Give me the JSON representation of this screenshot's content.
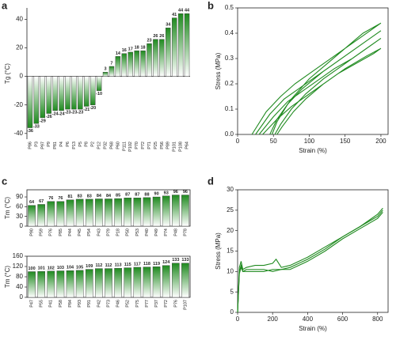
{
  "chart_data": [
    {
      "type": "bar",
      "label": "a",
      "ylabel": "Tg (°C)",
      "color": "#1f8a1f",
      "frame": false,
      "categories": [
        "P86",
        "P3",
        "P97",
        "P9",
        "P81",
        "P4",
        "P6",
        "P13",
        "P5",
        "P8",
        "P2",
        "P12",
        "P32",
        "P68",
        "P60",
        "P111",
        "P102",
        "P70",
        "P72",
        "P71",
        "P25",
        "P56",
        "P89",
        "P101",
        "P108",
        "P64"
      ],
      "values": [
        -36,
        -33,
        -29,
        -26,
        -24,
        -24,
        -23,
        -23,
        -23,
        -21,
        -20,
        -10,
        3,
        7,
        14,
        16,
        17,
        18,
        18,
        23,
        26,
        26,
        34,
        41,
        44,
        44
      ],
      "ylim": [
        -44,
        48
      ],
      "yticks": [
        -40,
        -20,
        0,
        20,
        40
      ]
    },
    {
      "type": "line",
      "label": "b",
      "xlabel": "Strain (%)",
      "ylabel": "Stress (MPa)",
      "color": "#1f8a1f",
      "xlim": [
        0,
        210
      ],
      "xticks": [
        0,
        50,
        100,
        150,
        200
      ],
      "ylim": [
        0,
        0.5
      ],
      "yticks": [
        {
          "value": 0,
          "label": "0.0"
        },
        0.1,
        0.2,
        0.3,
        0.4,
        0.5
      ],
      "series": [
        {
          "x": [
            20,
            40,
            60,
            80,
            100,
            125,
            150,
            175,
            200,
            175,
            150,
            125,
            100,
            75,
            55,
            45
          ],
          "values": [
            0,
            0.09,
            0.15,
            0.2,
            0.24,
            0.29,
            0.34,
            0.39,
            0.44,
            0.4,
            0.34,
            0.28,
            0.22,
            0.14,
            0.06,
            0
          ]
        },
        {
          "x": [
            25,
            45,
            65,
            85,
            105,
            130,
            155,
            180,
            200,
            180,
            150,
            120,
            90,
            70,
            55,
            48
          ],
          "values": [
            0,
            0.08,
            0.14,
            0.18,
            0.22,
            0.27,
            0.32,
            0.37,
            0.41,
            0.37,
            0.31,
            0.25,
            0.18,
            0.12,
            0.05,
            0
          ]
        },
        {
          "x": [
            30,
            50,
            70,
            90,
            110,
            135,
            160,
            185,
            200,
            180,
            150,
            120,
            95,
            75,
            60,
            52
          ],
          "values": [
            0,
            0.07,
            0.13,
            0.17,
            0.21,
            0.26,
            0.3,
            0.35,
            0.38,
            0.34,
            0.28,
            0.22,
            0.16,
            0.1,
            0.04,
            0
          ]
        },
        {
          "x": [
            35,
            55,
            75,
            95,
            115,
            140,
            165,
            190,
            200,
            180,
            150,
            120,
            95,
            78,
            62,
            55
          ],
          "values": [
            0,
            0.06,
            0.11,
            0.15,
            0.19,
            0.24,
            0.28,
            0.32,
            0.34,
            0.31,
            0.26,
            0.2,
            0.14,
            0.09,
            0.03,
            0
          ]
        }
      ]
    },
    {
      "type": "bar",
      "label": "c",
      "ylabel": "Tm (°C)",
      "color": "#1f8a1f",
      "frame": true,
      "categories": [
        "P90",
        "P59",
        "P76",
        "P85",
        "P44",
        "P45",
        "P54",
        "P43",
        "P79",
        "P18",
        "P50",
        "P53",
        "P40",
        "P49",
        "P74",
        "P48",
        "P78"
      ],
      "values": [
        64,
        67,
        76,
        76,
        81,
        83,
        83,
        84,
        84,
        85,
        87,
        87,
        88,
        90,
        93,
        96,
        96
      ],
      "ylim": [
        0,
        112
      ],
      "yticks": [
        0,
        30,
        60,
        90
      ]
    },
    {
      "type": "bar",
      "ylabel": "Tm (°C)",
      "color": "#1f8a1f",
      "frame": true,
      "categories": [
        "P47",
        "P55",
        "P41",
        "P58",
        "P84",
        "P93",
        "P91",
        "P42",
        "P73",
        "P46",
        "P52",
        "P75",
        "P77",
        "P37",
        "P72",
        "P76",
        "P107"
      ],
      "values": [
        100,
        101,
        102,
        103,
        104,
        105,
        109,
        112,
        112,
        113,
        115,
        117,
        118,
        119,
        124,
        133,
        133
      ],
      "ylim": [
        0,
        160
      ],
      "yticks": [
        0,
        40,
        80,
        120,
        160
      ]
    },
    {
      "type": "line",
      "label": "d",
      "xlabel": "Strain (%)",
      "ylabel": "Stress (MPa)",
      "color": "#1f8a1f",
      "xlim": [
        0,
        860
      ],
      "xticks": [
        0,
        200,
        400,
        600,
        800
      ],
      "ylim": [
        0,
        30
      ],
      "yticks": [
        0,
        5,
        10,
        15,
        20,
        25,
        30
      ],
      "series": [
        {
          "x": [
            0,
            10,
            20,
            30,
            50,
            100,
            150,
            200,
            220,
            250,
            300,
            400,
            500,
            600,
            700,
            800,
            830
          ],
          "values": [
            0,
            11,
            12.5,
            10.5,
            11,
            11.5,
            11.5,
            12,
            13,
            11,
            11.5,
            13.5,
            16,
            18.5,
            21,
            24,
            25.5
          ]
        },
        {
          "x": [
            0,
            10,
            20,
            30,
            50,
            100,
            150,
            200,
            250,
            300,
            400,
            500,
            600,
            700,
            800,
            830
          ],
          "values": [
            0,
            10,
            11.5,
            10,
            10.5,
            10.5,
            10.5,
            10,
            10.5,
            11,
            13,
            15.5,
            18.5,
            21,
            23.5,
            25
          ]
        },
        {
          "x": [
            0,
            10,
            20,
            30,
            50,
            100,
            150,
            200,
            250,
            300,
            400,
            500,
            600,
            700,
            800,
            830
          ],
          "values": [
            0,
            9.5,
            11,
            10,
            10,
            10,
            10,
            10.5,
            10.5,
            10.5,
            12.5,
            15,
            18,
            20.5,
            23,
            24.5
          ]
        }
      ]
    }
  ]
}
